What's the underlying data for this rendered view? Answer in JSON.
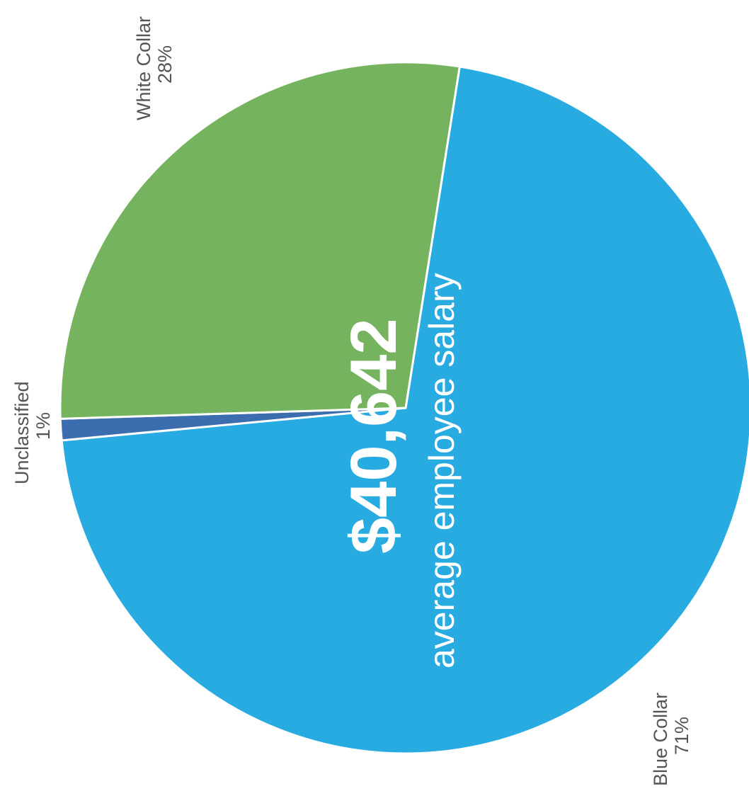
{
  "chart_data": {
    "type": "pie",
    "slices": [
      {
        "label": "Blue Collar",
        "value": 71,
        "value_label": "71%",
        "color": "#27ABE1"
      },
      {
        "label": "White Collar",
        "value": 28,
        "value_label": "28%",
        "color": "#76B35E"
      },
      {
        "label": "Unclassified",
        "value": 1,
        "value_label": "1%",
        "color": "#3B6DAF"
      }
    ],
    "center_value": "$40,642",
    "center_caption": "average employee salary",
    "orientation": "rotated-90-ccw"
  }
}
